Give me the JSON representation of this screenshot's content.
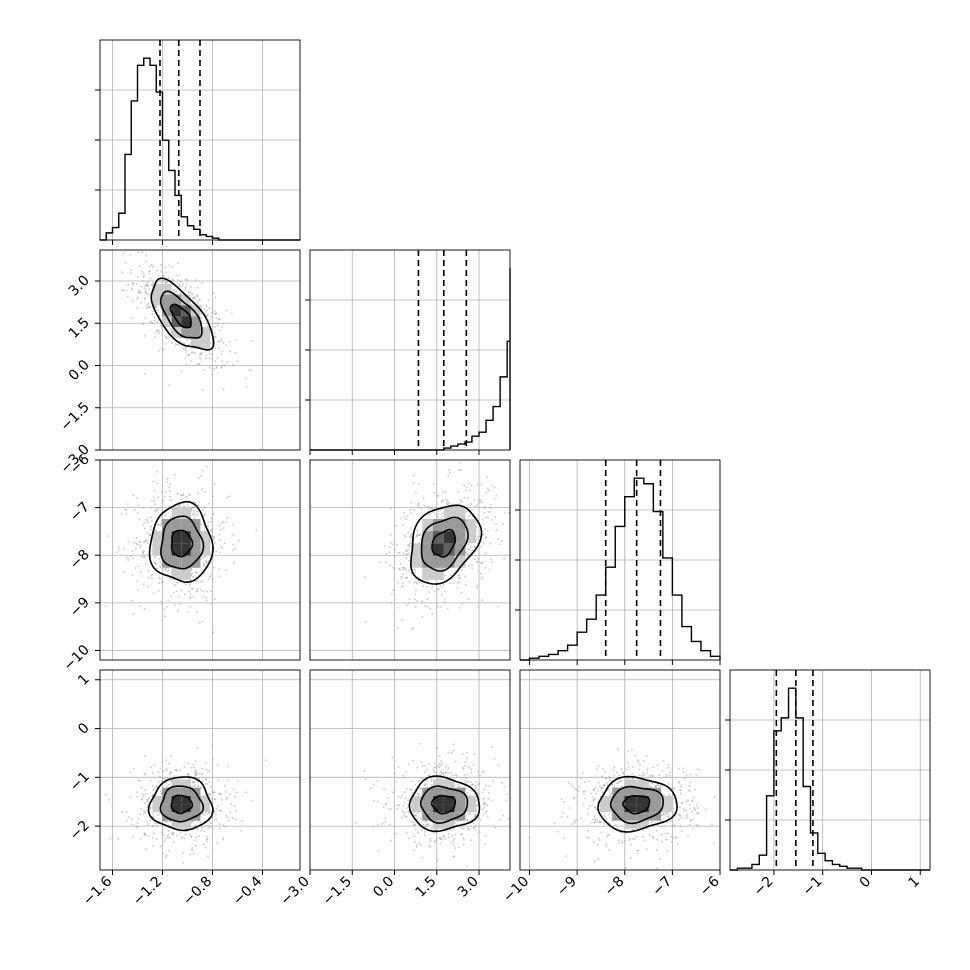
{
  "chart_data": {
    "type": "corner",
    "grid": true,
    "contour_levels": 3,
    "parameters": [
      {
        "range": [
          -1.7,
          -0.1
        ],
        "ticks": [
          -1.6,
          -1.2,
          -0.8,
          -0.4
        ],
        "tick_labels": [
          "−1.6",
          "−1.2",
          "−0.8",
          "−0.4"
        ],
        "quantiles": [
          -1.22,
          -1.07,
          -0.9
        ],
        "histogram": {
          "start": -1.7,
          "bin_width": 0.05,
          "counts": [
            0,
            4,
            7,
            15,
            48,
            78,
            98,
            102,
            98,
            83,
            56,
            39,
            25,
            13,
            8,
            6,
            3,
            2,
            1,
            0,
            0,
            0,
            0,
            0,
            0,
            0,
            0,
            0,
            0,
            0,
            0,
            0
          ]
        }
      },
      {
        "range": [
          -3.0,
          4.1
        ],
        "ticks": [
          -3.0,
          -1.5,
          0.0,
          1.5,
          3.0
        ],
        "tick_labels": [
          "−3.0",
          "−1.5",
          "0.0",
          "1.5",
          "3.0"
        ],
        "quantiles": [
          0.85,
          1.75,
          2.55
        ],
        "histogram": {
          "start": -3.0,
          "bin_width": 0.25,
          "counts": [
            0,
            0,
            0,
            0,
            0,
            0,
            0,
            0,
            0,
            0,
            0,
            0,
            0,
            0,
            0,
            0,
            0,
            0,
            0,
            1,
            2,
            3,
            4,
            7,
            9,
            15,
            22,
            37,
            55,
            72,
            85,
            92,
            87,
            75,
            55,
            35,
            15,
            6,
            2,
            0
          ]
        }
      },
      {
        "range": [
          -10.2,
          -6.0
        ],
        "ticks": [
          -10,
          -9,
          -8,
          -7,
          -6
        ],
        "tick_labels": [
          "−10",
          "−9",
          "−8",
          "−7",
          "−6"
        ],
        "quantiles": [
          -8.4,
          -7.75,
          -7.25
        ],
        "histogram": {
          "start": -10.2,
          "bin_width": 0.2,
          "counts": [
            0,
            1,
            2,
            3,
            5,
            8,
            15,
            22,
            35,
            50,
            72,
            88,
            98,
            95,
            80,
            55,
            35,
            18,
            10,
            5,
            2,
            1
          ]
        }
      },
      {
        "range": [
          -2.9,
          1.2
        ],
        "ticks": [
          -2,
          -1,
          0,
          1
        ],
        "tick_labels": [
          "−2",
          "−1",
          "0",
          "1"
        ],
        "quantiles": [
          -1.95,
          -1.55,
          -1.2
        ],
        "histogram": {
          "start": -2.9,
          "bin_width": 0.15,
          "counts": [
            0,
            1,
            1,
            3,
            8,
            40,
            75,
            82,
            98,
            82,
            45,
            20,
            9,
            5,
            3,
            2,
            1,
            1,
            0,
            0,
            0,
            0,
            0,
            0,
            0,
            0,
            0,
            0
          ]
        }
      }
    ],
    "correlations": [
      [
        1,
        -0.65,
        0,
        0
      ],
      [
        -0.65,
        1,
        0.3,
        0
      ],
      [
        0,
        0.3,
        1,
        0.05
      ],
      [
        0,
        0,
        0.05,
        1
      ]
    ],
    "stds": [
      0.15,
      0.75,
      0.5,
      0.33
    ],
    "means": [
      -1.05,
      1.75,
      -7.75,
      -1.55
    ],
    "colors": {
      "line": "#000000",
      "grid": "#b0b0b0",
      "points": "#9a9a9a",
      "background": "#ffffff"
    }
  }
}
